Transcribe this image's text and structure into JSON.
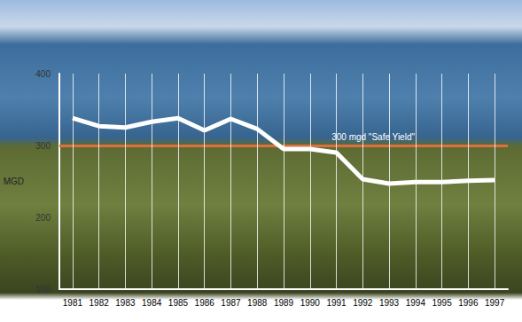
{
  "chart_data": {
    "type": "line",
    "categories": [
      "1981",
      "1982",
      "1983",
      "1984",
      "1985",
      "1986",
      "1987",
      "1988",
      "1989",
      "1990",
      "1991",
      "1992",
      "1993",
      "1994",
      "1995",
      "1996",
      "1997"
    ],
    "values": [
      338,
      327,
      325,
      333,
      338,
      321,
      337,
      323,
      295,
      295,
      290,
      253,
      247,
      249,
      249,
      251,
      252
    ],
    "color": "#ffffff",
    "y_label": "MGD",
    "ylim": [
      100,
      400
    ],
    "yticks": [
      100,
      200,
      300,
      400
    ],
    "grid": true,
    "reference_line": {
      "value": 300,
      "label": "300 mgd \"Safe Yield\"",
      "color": "#e0703a"
    }
  }
}
